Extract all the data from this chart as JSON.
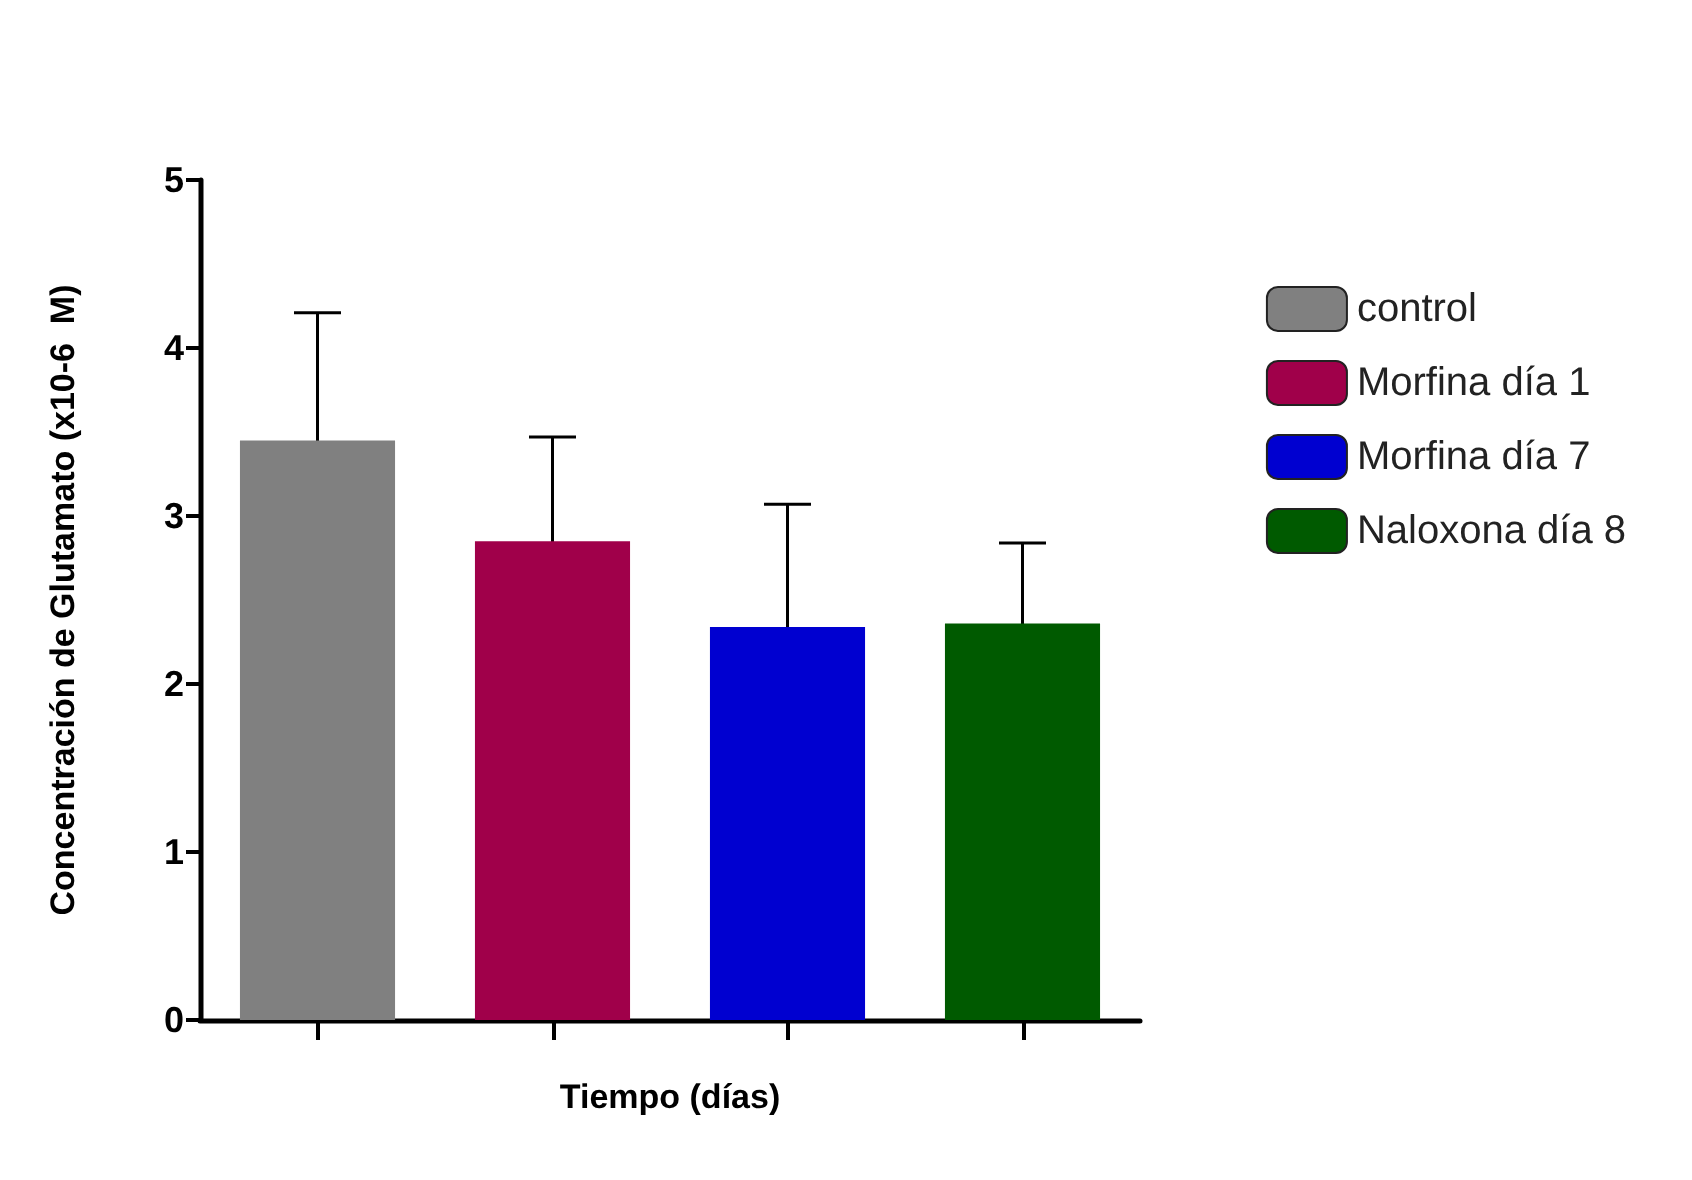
{
  "chart_data": {
    "type": "bar",
    "xlabel": "Tiempo (días)",
    "ylabel": "Concentración de Glutamato (x10-6  M)",
    "categories": [
      null,
      null,
      null,
      null
    ],
    "series": [
      {
        "name": "control",
        "color": "#808080",
        "values": [
          3.45,
          null,
          null,
          null
        ],
        "errors": [
          0.76,
          null,
          null,
          null
        ]
      },
      {
        "name": "Morfina día 1",
        "color": "#a0004a",
        "values": [
          null,
          2.85,
          null,
          null
        ],
        "errors": [
          null,
          0.62,
          null,
          null
        ]
      },
      {
        "name": "Morfina día 7",
        "color": "#0000d0",
        "values": [
          null,
          null,
          2.34,
          null
        ],
        "errors": [
          null,
          null,
          0.73,
          null
        ]
      },
      {
        "name": "Naloxona día 8",
        "color": "#005a00",
        "values": [
          null,
          null,
          null,
          2.36
        ],
        "errors": [
          null,
          null,
          null,
          0.48
        ]
      }
    ],
    "ylim": [
      0,
      5
    ],
    "yticks": [
      0,
      1,
      2,
      3,
      4,
      5
    ],
    "grid": false,
    "legend": "right"
  }
}
